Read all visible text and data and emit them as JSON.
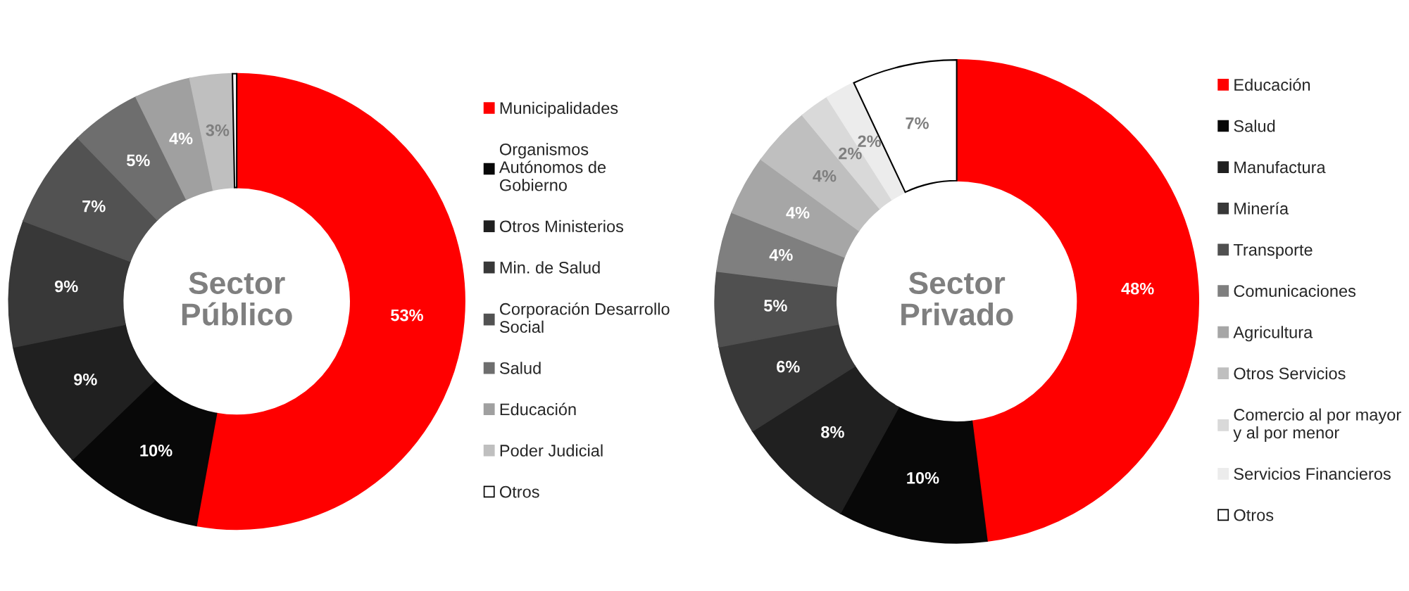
{
  "chart_data": [
    {
      "type": "donut",
      "title": "Sector\nPúblico",
      "legend": "right",
      "categories": [
        "Municipalidades",
        "Organismos\nAutónomos de\nGobierno",
        "Otros Ministerios",
        "Min. de Salud",
        "Corporación Desarrollo\nSocial",
        "Salud",
        "Educación",
        "Poder Judicial",
        "Otros"
      ],
      "values": [
        53,
        10,
        9,
        9,
        7,
        5,
        4,
        3,
        0.3
      ],
      "value_labels": [
        "53%",
        "10%",
        "9%",
        "9%",
        "7%",
        "5%",
        "4%",
        "3%",
        null
      ],
      "colors": [
        "#ff0000",
        "#080808",
        "#202020",
        "#383838",
        "#525252",
        "#6e6e6e",
        "#a0a0a0",
        "#bfbfbf",
        "#ffffff"
      ]
    },
    {
      "type": "donut",
      "title": "Sector\nPrivado",
      "legend": "right",
      "categories": [
        "Educación",
        "Salud",
        "Manufactura",
        "Minería",
        "Transporte",
        "Comunicaciones",
        "Agricultura",
        "Otros Servicios",
        "Comercio al por mayor\ny al por menor",
        "Servicios Financieros",
        "Otros"
      ],
      "values": [
        48,
        10,
        8,
        6,
        5,
        4,
        4,
        4,
        2,
        2,
        7
      ],
      "value_labels": [
        "48%",
        "10%",
        "8%",
        "6%",
        "5%",
        "4%",
        "4%",
        "4%",
        "2%",
        "2%",
        "7%"
      ],
      "colors": [
        "#ff0000",
        "#080808",
        "#202020",
        "#383838",
        "#505050",
        "#7f7f7f",
        "#a6a6a6",
        "#bfbfbf",
        "#d9d9d9",
        "#ececec",
        "#ffffff"
      ]
    }
  ]
}
